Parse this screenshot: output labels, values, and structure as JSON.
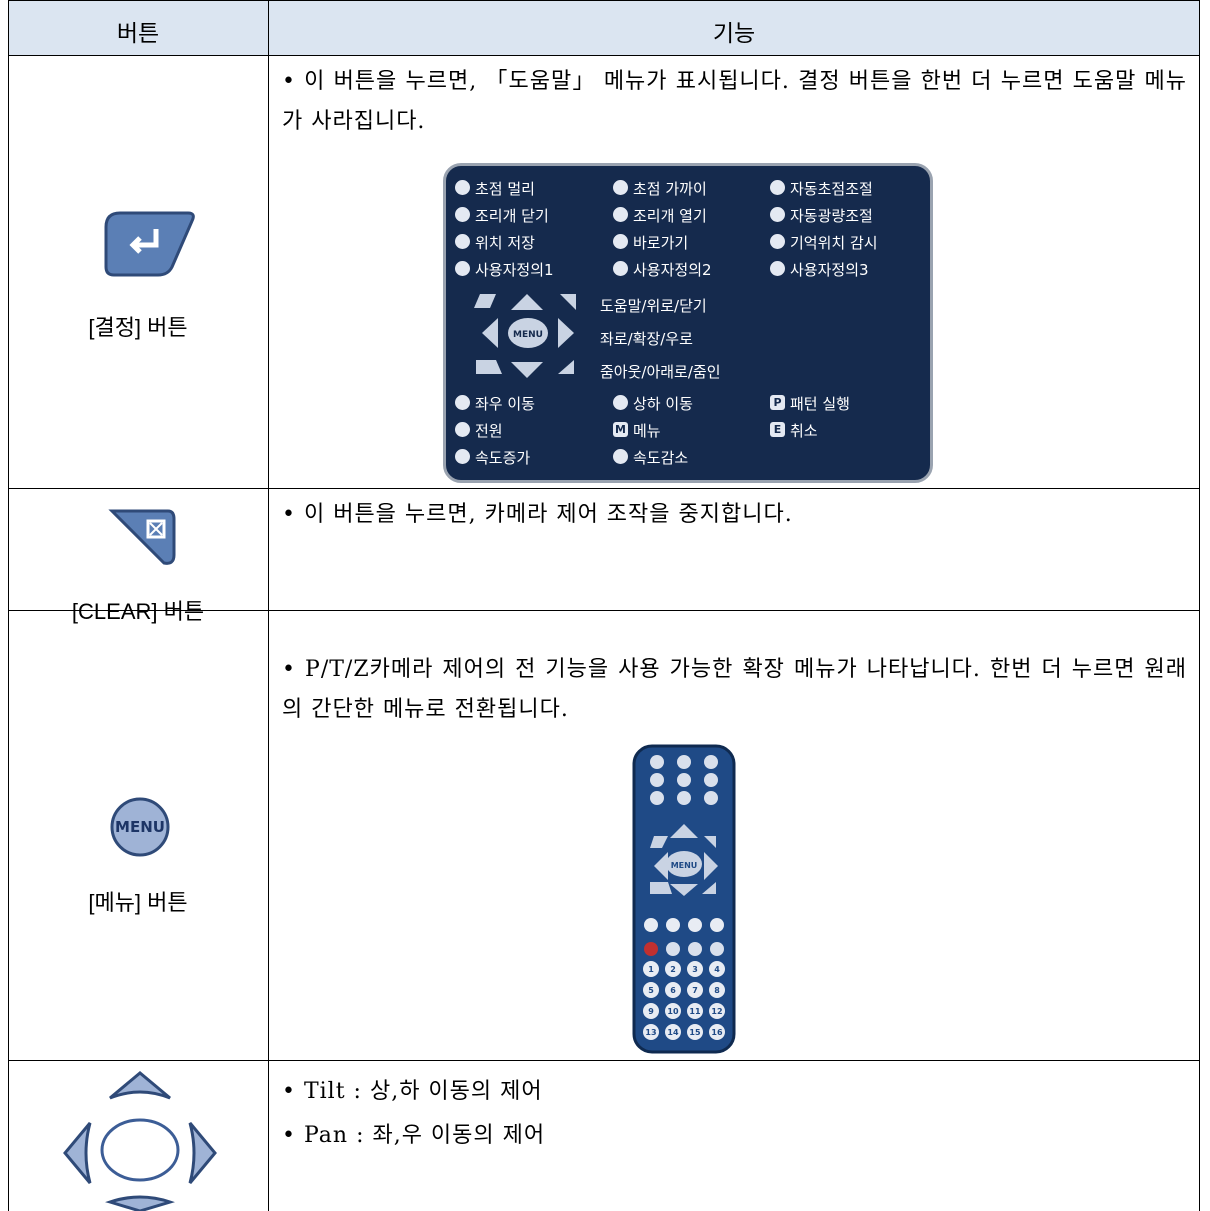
{
  "table": {
    "header": [
      "버튼",
      "기능"
    ],
    "rows": [
      {
        "button_label": "[결정] 버튼",
        "description": [
          "• 이 버튼을 누르면, 「도움말」 메뉴가 표시됩니다. 결정 버튼을 한번 더 누르면 도움말 메뉴가 사라집니다."
        ],
        "help_menu": {
          "items": [
            "초점 멀리",
            "초점 가까이",
            "자동초점조절",
            "조리개 닫기",
            "조리개 열기",
            "자동광량조절",
            "위치 저장",
            "바로가기",
            "기억위치 감시",
            "사용자정의1",
            "사용자정의2",
            "사용자정의3"
          ],
          "center": "MENU",
          "nav": [
            "도움말/위로/닫기",
            "좌로/확장/우로",
            "줌아웃/아래로/줌인"
          ],
          "bottom_items": [
            {
              "label": "좌우 이동"
            },
            {
              "label": "상하 이동"
            },
            {
              "icon": "P",
              "label": "패턴 실행"
            },
            {
              "label": "전원"
            },
            {
              "icon": "M",
              "label": "메뉴"
            },
            {
              "icon": "E",
              "label": "취소"
            },
            {
              "label": "속도증가"
            },
            {
              "label": "속도감소"
            }
          ]
        }
      },
      {
        "button_label": "[CLEAR] 버튼",
        "description": [
          "• 이 버튼을 누르면, 카메라 제어 조작을 중지합니다."
        ]
      },
      {
        "button_label": "[메뉴] 버튼",
        "button_icon_text": "MENU",
        "description": [
          "• P/T/Z카메라 제어의 전 기능을 사용 가능한 확장 메뉴가 나타납니다. 한번 더 누르면 원래의 간단한 메뉴로 전환됩니다."
        ],
        "remote": {
          "center": "MENU",
          "number_keys": [
            1,
            2,
            3,
            4,
            5,
            6,
            7,
            8,
            9,
            10,
            11,
            12,
            13,
            14,
            15,
            16
          ]
        }
      },
      {
        "description": [
          "• Tilt : 상,하 이동의 제어",
          "• Pan : 좌,우 이동의 제어"
        ]
      }
    ]
  }
}
